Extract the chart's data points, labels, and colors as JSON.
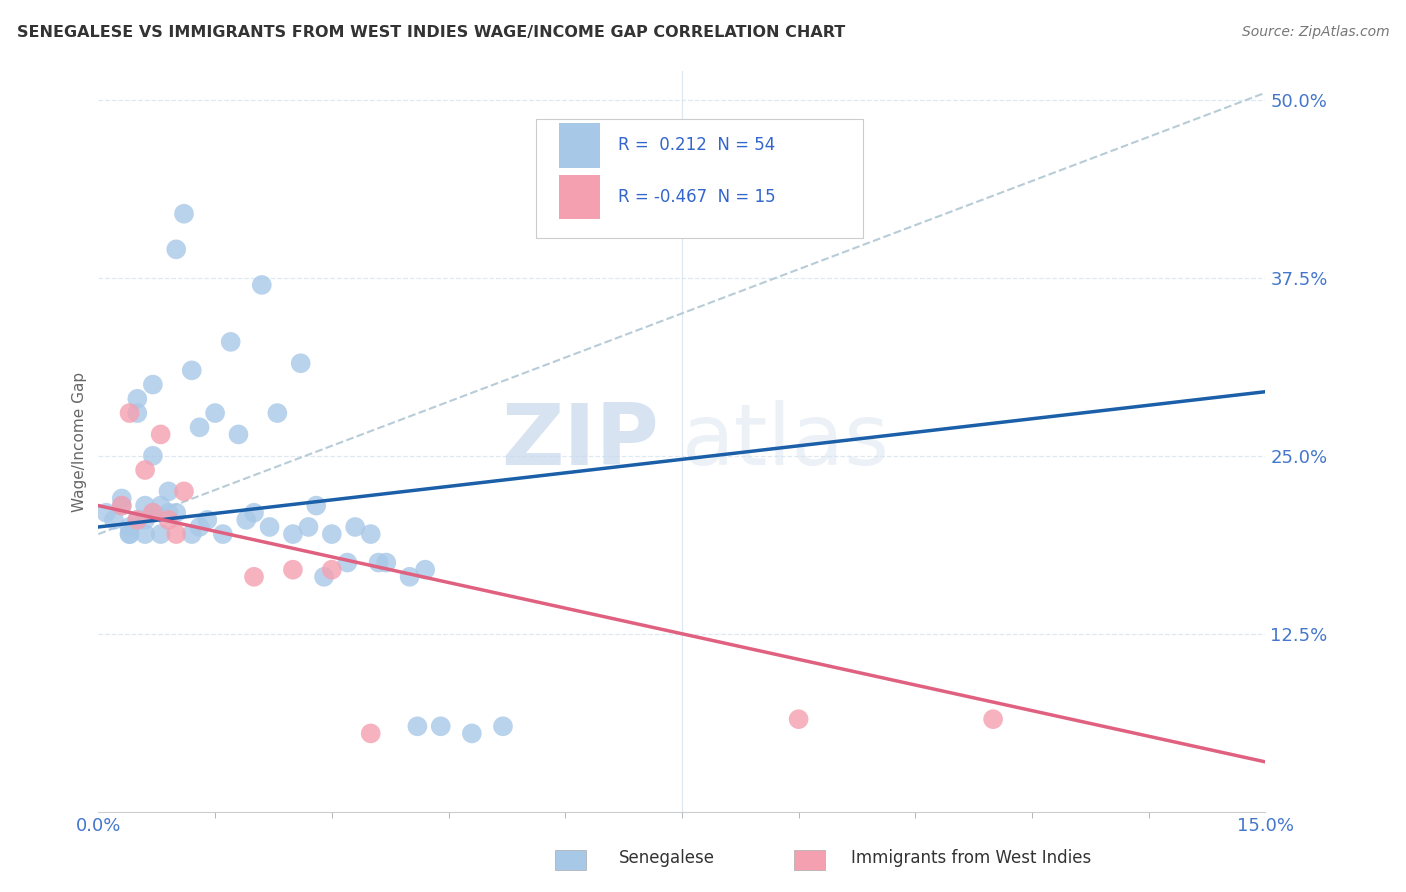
{
  "title": "SENEGALESE VS IMMIGRANTS FROM WEST INDIES WAGE/INCOME GAP CORRELATION CHART",
  "source_text": "Source: ZipAtlas.com",
  "ylabel": "Wage/Income Gap",
  "xlim": [
    0.0,
    0.15
  ],
  "ylim": [
    0.0,
    0.52
  ],
  "yticks": [
    0.125,
    0.25,
    0.375,
    0.5
  ],
  "ytick_labels": [
    "12.5%",
    "25.0%",
    "37.5%",
    "50.0%"
  ],
  "xtick_vals": [
    0.0,
    0.15
  ],
  "xtick_labels": [
    "0.0%",
    "15.0%"
  ],
  "blue_R": 0.212,
  "blue_N": 54,
  "pink_R": -0.467,
  "pink_N": 15,
  "blue_color": "#a8c8e8",
  "pink_color": "#f4a0b0",
  "blue_line_color": "#1a5fa8",
  "pink_line_color": "#e06080",
  "gray_dash_color": "#b8ccd8",
  "background_color": "#ffffff",
  "grid_color": "#dde8f0",
  "legend_label_blue": "Senegalese",
  "legend_label_pink": "Immigrants from West Indies",
  "watermark_zip": "ZIP",
  "watermark_atlas": "atlas",
  "blue_scatter_x": [
    0.001,
    0.002,
    0.003,
    0.003,
    0.004,
    0.004,
    0.004,
    0.005,
    0.005,
    0.005,
    0.006,
    0.006,
    0.006,
    0.007,
    0.007,
    0.007,
    0.008,
    0.008,
    0.009,
    0.009,
    0.01,
    0.01,
    0.011,
    0.012,
    0.012,
    0.013,
    0.013,
    0.014,
    0.015,
    0.016,
    0.017,
    0.018,
    0.019,
    0.02,
    0.021,
    0.022,
    0.023,
    0.025,
    0.026,
    0.027,
    0.028,
    0.029,
    0.03,
    0.032,
    0.033,
    0.035,
    0.036,
    0.037,
    0.04,
    0.041,
    0.042,
    0.044,
    0.048,
    0.052
  ],
  "blue_scatter_y": [
    0.21,
    0.205,
    0.215,
    0.22,
    0.2,
    0.195,
    0.195,
    0.28,
    0.29,
    0.205,
    0.215,
    0.195,
    0.205,
    0.3,
    0.25,
    0.21,
    0.215,
    0.195,
    0.21,
    0.225,
    0.21,
    0.395,
    0.42,
    0.195,
    0.31,
    0.2,
    0.27,
    0.205,
    0.28,
    0.195,
    0.33,
    0.265,
    0.205,
    0.21,
    0.37,
    0.2,
    0.28,
    0.195,
    0.315,
    0.2,
    0.215,
    0.165,
    0.195,
    0.175,
    0.2,
    0.195,
    0.175,
    0.175,
    0.165,
    0.06,
    0.17,
    0.06,
    0.055,
    0.06
  ],
  "pink_scatter_x": [
    0.003,
    0.004,
    0.005,
    0.006,
    0.007,
    0.008,
    0.009,
    0.01,
    0.011,
    0.02,
    0.025,
    0.03,
    0.035,
    0.09,
    0.115
  ],
  "pink_scatter_y": [
    0.215,
    0.28,
    0.205,
    0.24,
    0.21,
    0.265,
    0.205,
    0.195,
    0.225,
    0.165,
    0.17,
    0.17,
    0.055,
    0.065,
    0.065
  ],
  "gray_line_x": [
    0.0,
    0.15
  ],
  "gray_line_y": [
    0.195,
    0.505
  ]
}
